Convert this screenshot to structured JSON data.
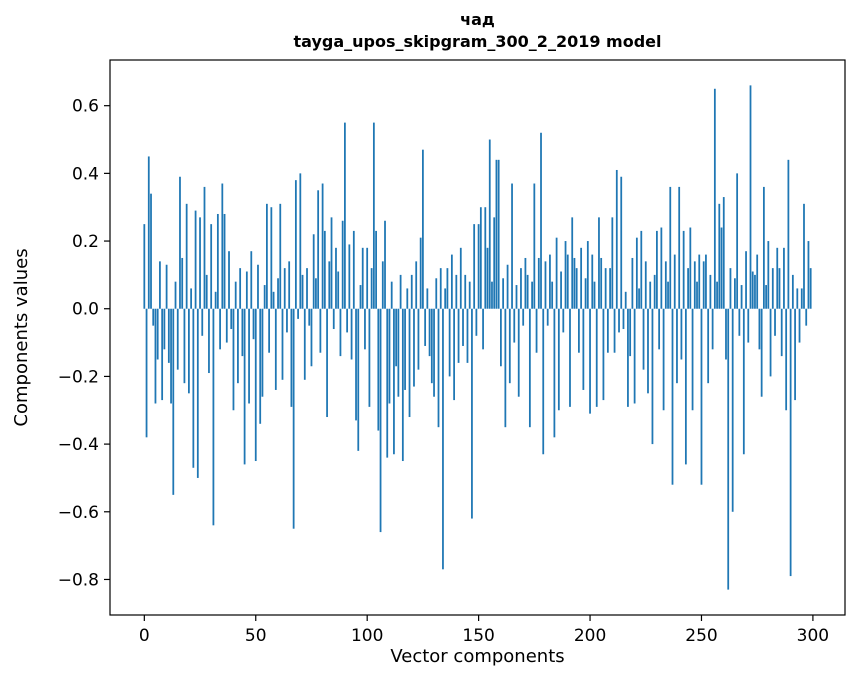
{
  "chart_data": {
    "type": "bar",
    "title": "чад",
    "subtitle": "tayga_upos_skipgram_300_2_2019 model",
    "xlabel": "Vector components",
    "ylabel": "Components values",
    "bar_color": "#1f77b4",
    "axis_color": "#000000",
    "background_color": "#ffffff",
    "grid": false,
    "legend": "none",
    "xlim": [
      -15.4,
      314.4
    ],
    "ylim": [
      -0.905,
      0.735
    ],
    "x_ticks": [
      0,
      50,
      100,
      150,
      200,
      250,
      300
    ],
    "x_tick_labels": [
      "0",
      "50",
      "100",
      "150",
      "200",
      "250",
      "300"
    ],
    "y_ticks": [
      -0.8,
      -0.6,
      -0.4,
      -0.2,
      0.0,
      0.2,
      0.4,
      0.6
    ],
    "y_tick_labels": [
      "−0.8",
      "−0.6",
      "−0.4",
      "−0.2",
      "0.0",
      "0.2",
      "0.4",
      "0.6"
    ],
    "x_start_index": 0,
    "bar_width": 0.8,
    "values": [
      0.25,
      -0.38,
      0.45,
      0.34,
      -0.05,
      -0.28,
      -0.15,
      0.14,
      -0.27,
      -0.12,
      0.13,
      -0.16,
      -0.28,
      -0.55,
      0.08,
      -0.18,
      0.39,
      0.15,
      -0.22,
      0.31,
      -0.25,
      0.06,
      -0.47,
      0.29,
      -0.5,
      0.27,
      -0.08,
      0.36,
      0.1,
      -0.19,
      0.25,
      -0.64,
      0.05,
      0.28,
      -0.12,
      0.37,
      0.28,
      -0.1,
      0.17,
      -0.06,
      -0.3,
      0.08,
      -0.22,
      0.12,
      -0.14,
      -0.46,
      0.11,
      -0.28,
      0.17,
      -0.09,
      -0.45,
      0.13,
      -0.34,
      -0.26,
      0.07,
      0.31,
      -0.13,
      0.3,
      0.05,
      -0.24,
      0.09,
      0.31,
      -0.21,
      0.12,
      -0.07,
      0.14,
      -0.29,
      -0.65,
      0.38,
      -0.03,
      0.4,
      0.1,
      -0.21,
      0.12,
      -0.05,
      -0.17,
      0.22,
      0.09,
      0.35,
      -0.13,
      0.37,
      0.23,
      -0.32,
      0.14,
      0.27,
      -0.06,
      0.18,
      0.11,
      -0.14,
      0.26,
      0.55,
      -0.07,
      0.19,
      -0.15,
      0.23,
      -0.33,
      -0.42,
      0.07,
      0.18,
      -0.12,
      0.18,
      -0.29,
      0.12,
      0.55,
      0.23,
      -0.36,
      -0.66,
      0.14,
      0.26,
      -0.44,
      -0.28,
      0.08,
      -0.43,
      -0.17,
      -0.26,
      0.1,
      -0.45,
      -0.24,
      0.06,
      -0.32,
      0.1,
      -0.23,
      0.14,
      -0.18,
      0.21,
      0.47,
      -0.11,
      0.06,
      -0.14,
      -0.22,
      -0.26,
      0.09,
      -0.35,
      0.12,
      -0.77,
      0.06,
      0.12,
      -0.2,
      0.16,
      -0.27,
      0.1,
      -0.16,
      0.18,
      -0.11,
      0.1,
      -0.16,
      0.08,
      -0.62,
      0.25,
      -0.08,
      0.25,
      0.3,
      -0.12,
      0.3,
      0.18,
      0.5,
      0.08,
      0.27,
      0.44,
      0.44,
      -0.17,
      0.09,
      -0.35,
      0.13,
      -0.22,
      0.37,
      -0.1,
      0.07,
      -0.26,
      0.12,
      -0.05,
      0.15,
      0.1,
      -0.35,
      0.08,
      0.37,
      -0.13,
      0.15,
      0.52,
      -0.43,
      0.14,
      -0.05,
      0.16,
      0.08,
      -0.38,
      0.21,
      -0.3,
      0.11,
      -0.07,
      0.2,
      0.16,
      -0.29,
      0.27,
      0.15,
      0.12,
      -0.13,
      0.18,
      -0.24,
      0.09,
      0.2,
      -0.31,
      0.16,
      0.08,
      -0.29,
      0.27,
      0.15,
      -0.27,
      0.12,
      -0.13,
      0.12,
      0.27,
      -0.13,
      0.41,
      -0.07,
      0.39,
      -0.06,
      0.05,
      -0.29,
      -0.14,
      0.15,
      -0.28,
      0.21,
      0.06,
      0.23,
      -0.18,
      0.14,
      -0.25,
      0.08,
      -0.4,
      0.1,
      0.23,
      -0.12,
      0.24,
      -0.3,
      0.14,
      0.08,
      0.36,
      -0.52,
      0.16,
      -0.22,
      0.36,
      -0.15,
      0.23,
      -0.46,
      0.12,
      0.24,
      -0.3,
      0.14,
      0.08,
      0.16,
      -0.52,
      0.14,
      0.16,
      -0.22,
      0.1,
      -0.12,
      0.65,
      0.08,
      0.31,
      0.24,
      0.33,
      -0.15,
      -0.83,
      0.12,
      -0.6,
      0.09,
      0.4,
      -0.08,
      0.07,
      -0.43,
      0.17,
      -0.1,
      0.66,
      0.11,
      0.1,
      0.16,
      -0.12,
      -0.26,
      0.36,
      0.07,
      0.2,
      -0.2,
      0.12,
      -0.08,
      0.18,
      0.12,
      -0.14,
      0.18,
      -0.3,
      0.44,
      -0.79,
      0.1,
      -0.27,
      0.06,
      -0.1,
      0.06,
      0.31,
      -0.05,
      0.2,
      0.12
    ]
  }
}
